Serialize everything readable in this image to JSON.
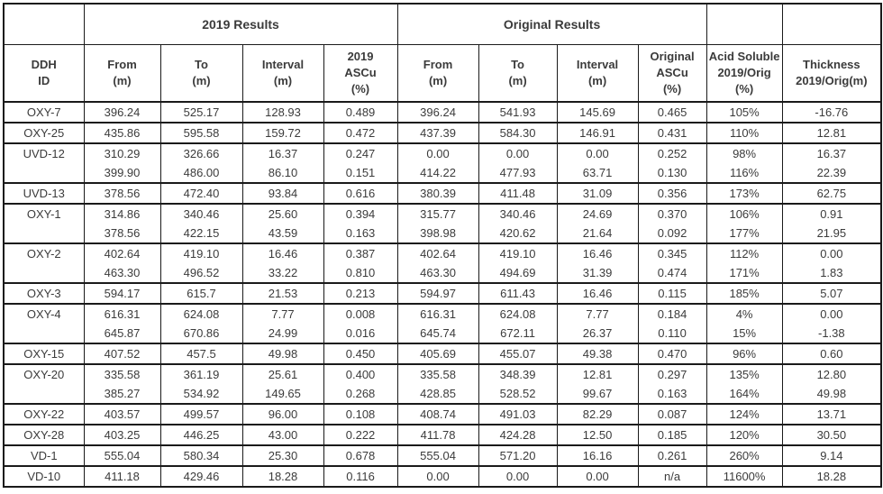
{
  "chart_data": {
    "type": "table",
    "title": "",
    "column_groups": [
      "2019 Results",
      "Original Results"
    ],
    "columns": [
      "DDH\nID",
      "From\n(m)",
      "To\n(m)",
      "Interval\n(m)",
      "2019\nASCu\n(%)",
      "From\n(m)",
      "To\n(m)",
      "Interval\n(m)",
      "Original\nASCu\n(%)",
      "Acid Soluble\n2019/Orig\n(%)",
      "Thickness\n2019/Orig(m)"
    ],
    "rows": [
      {
        "id": "OXY-7",
        "group_start": true,
        "cells": [
          "396.24",
          "525.17",
          "128.93",
          "0.489",
          "396.24",
          "541.93",
          "145.69",
          "0.465",
          "105%",
          "-16.76"
        ]
      },
      {
        "id": "OXY-25",
        "group_start": true,
        "cells": [
          "435.86",
          "595.58",
          "159.72",
          "0.472",
          "437.39",
          "584.30",
          "146.91",
          "0.431",
          "110%",
          "12.81"
        ]
      },
      {
        "id": "UVD-12",
        "group_start": true,
        "cells": [
          "310.29",
          "326.66",
          "16.37",
          "0.247",
          "0.00",
          "0.00",
          "0.00",
          "0.252",
          "98%",
          "16.37"
        ]
      },
      {
        "id": "",
        "group_start": false,
        "cells": [
          "399.90",
          "486.00",
          "86.10",
          "0.151",
          "414.22",
          "477.93",
          "63.71",
          "0.130",
          "116%",
          "22.39"
        ]
      },
      {
        "id": "UVD-13",
        "group_start": true,
        "cells": [
          "378.56",
          "472.40",
          "93.84",
          "0.616",
          "380.39",
          "411.48",
          "31.09",
          "0.356",
          "173%",
          "62.75"
        ]
      },
      {
        "id": "OXY-1",
        "group_start": true,
        "cells": [
          "314.86",
          "340.46",
          "25.60",
          "0.394",
          "315.77",
          "340.46",
          "24.69",
          "0.370",
          "106%",
          "0.91"
        ]
      },
      {
        "id": "",
        "group_start": false,
        "cells": [
          "378.56",
          "422.15",
          "43.59",
          "0.163",
          "398.98",
          "420.62",
          "21.64",
          "0.092",
          "177%",
          "21.95"
        ]
      },
      {
        "id": "OXY-2",
        "group_start": true,
        "cells": [
          "402.64",
          "419.10",
          "16.46",
          "0.387",
          "402.64",
          "419.10",
          "16.46",
          "0.345",
          "112%",
          "0.00"
        ]
      },
      {
        "id": "",
        "group_start": false,
        "cells": [
          "463.30",
          "496.52",
          "33.22",
          "0.810",
          "463.30",
          "494.69",
          "31.39",
          "0.474",
          "171%",
          "1.83"
        ]
      },
      {
        "id": "OXY-3",
        "group_start": true,
        "cells": [
          "594.17",
          "615.7",
          "21.53",
          "0.213",
          "594.97",
          "611.43",
          "16.46",
          "0.115",
          "185%",
          "5.07"
        ]
      },
      {
        "id": "OXY-4",
        "group_start": true,
        "cells": [
          "616.31",
          "624.08",
          "7.77",
          "0.008",
          "616.31",
          "624.08",
          "7.77",
          "0.184",
          "4%",
          "0.00"
        ]
      },
      {
        "id": "",
        "group_start": false,
        "cells": [
          "645.87",
          "670.86",
          "24.99",
          "0.016",
          "645.74",
          "672.11",
          "26.37",
          "0.110",
          "15%",
          "-1.38"
        ]
      },
      {
        "id": "OXY-15",
        "group_start": true,
        "cells": [
          "407.52",
          "457.5",
          "49.98",
          "0.450",
          "405.69",
          "455.07",
          "49.38",
          "0.470",
          "96%",
          "0.60"
        ]
      },
      {
        "id": "OXY-20",
        "group_start": true,
        "cells": [
          "335.58",
          "361.19",
          "25.61",
          "0.400",
          "335.58",
          "348.39",
          "12.81",
          "0.297",
          "135%",
          "12.80"
        ]
      },
      {
        "id": "",
        "group_start": false,
        "cells": [
          "385.27",
          "534.92",
          "149.65",
          "0.268",
          "428.85",
          "528.52",
          "99.67",
          "0.163",
          "164%",
          "49.98"
        ]
      },
      {
        "id": "OXY-22",
        "group_start": true,
        "cells": [
          "403.57",
          "499.57",
          "96.00",
          "0.108",
          "408.74",
          "491.03",
          "82.29",
          "0.087",
          "124%",
          "13.71"
        ]
      },
      {
        "id": "OXY-28",
        "group_start": true,
        "cells": [
          "403.25",
          "446.25",
          "43.00",
          "0.222",
          "411.78",
          "424.28",
          "12.50",
          "0.185",
          "120%",
          "30.50"
        ]
      },
      {
        "id": "VD-1",
        "group_start": true,
        "cells": [
          "555.04",
          "580.34",
          "25.30",
          "0.678",
          "555.04",
          "571.20",
          "16.16",
          "0.261",
          "260%",
          "9.14"
        ]
      },
      {
        "id": "VD-10",
        "group_start": true,
        "cells": [
          "411.18",
          "429.46",
          "18.28",
          "0.116",
          "0.00",
          "0.00",
          "0.00",
          "n/a",
          "11600%",
          "18.28"
        ]
      }
    ]
  },
  "colors": {
    "text": "#3b3b3b",
    "border": "#1a1a1a",
    "background": "#ffffff"
  }
}
